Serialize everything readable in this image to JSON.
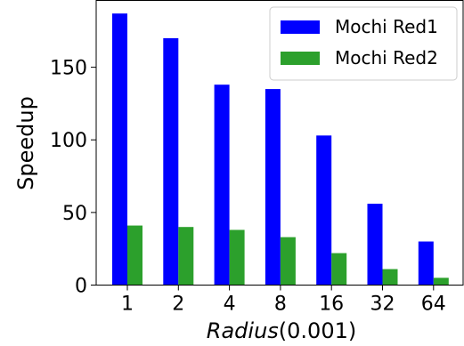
{
  "chart_data": {
    "type": "bar",
    "categories": [
      "1",
      "2",
      "4",
      "8",
      "16",
      "32",
      "64"
    ],
    "series": [
      {
        "name": "Mochi Red1",
        "color": "#0000ff",
        "values": [
          187,
          170,
          138,
          135,
          103,
          56,
          30
        ]
      },
      {
        "name": "Mochi Red2",
        "color": "#2ca02c",
        "values": [
          41,
          40,
          38,
          33,
          22,
          11,
          5
        ]
      }
    ],
    "ylabel": "Speedup",
    "xlabel": {
      "italic": "Radius",
      "rest": "(0.001)"
    },
    "yticks": [
      0,
      50,
      100,
      150
    ],
    "ylim": [
      0,
      196
    ],
    "legend": "top-right",
    "grid": false
  }
}
